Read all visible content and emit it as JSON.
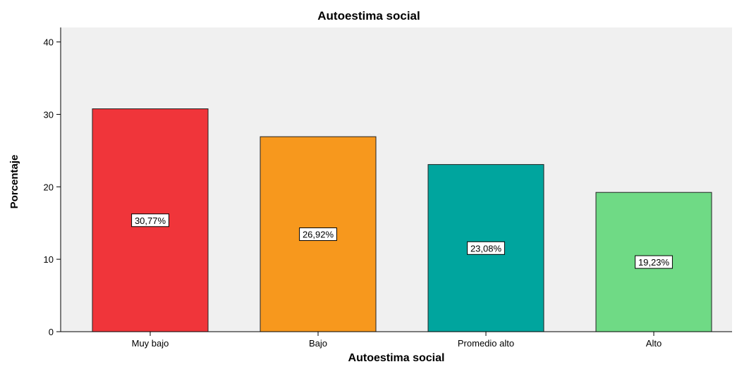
{
  "chart_data": {
    "type": "bar",
    "title": "Autoestima social",
    "xlabel": "Autoestima social",
    "ylabel": "Porcentaje",
    "categories": [
      "Muy bajo",
      "Bajo",
      "Promedio alto",
      "Alto"
    ],
    "values": [
      30.77,
      26.92,
      23.08,
      19.23
    ],
    "data_labels": [
      "30,77%",
      "26,92%",
      "23,08%",
      "19,23%"
    ],
    "colors": [
      "#F0353A",
      "#F7981D",
      "#00A59E",
      "#6FDA85"
    ],
    "ylim": [
      0,
      42
    ],
    "yticks": [
      0,
      10,
      20,
      30,
      40
    ],
    "grid": false,
    "legend": "none",
    "plot_background": "#F0F0F0"
  }
}
